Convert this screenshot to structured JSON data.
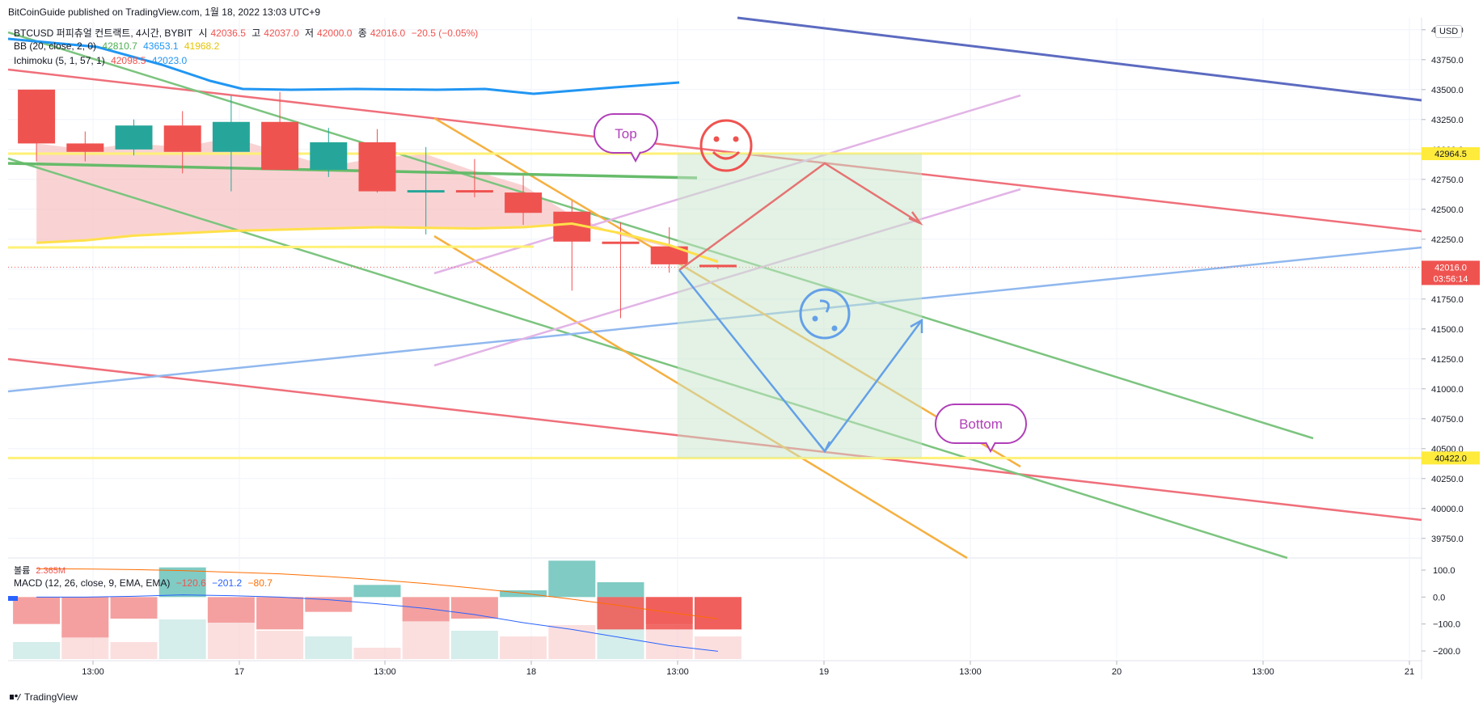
{
  "header": {
    "publisher": "BitCoinGuide published on TradingView.com, 1월 18, 2022 13:03 UTC+9"
  },
  "legend": {
    "symbol": "BTCUSD 퍼피츄얼 컨트랙트, 4시간, BYBIT",
    "o_label": "시",
    "o": "42036.5",
    "h_label": "고",
    "h": "42037.0",
    "l_label": "저",
    "l": "42000.0",
    "c_label": "종",
    "c": "42016.0",
    "chg": "−20.5 (−0.05%)",
    "bb": "BB (20, close, 2, 0)",
    "bb1": "42810.7",
    "bb2": "43653.1",
    "bb3": "41968.2",
    "ichimoku": "Ichimoku (5, 1, 57, 1)",
    "ich1": "42098.5",
    "ich2": "42023.0",
    "vol_label": "볼륨",
    "vol": "2.365M",
    "macd": "MACD (12, 26, close, 9, EMA, EMA)",
    "macd1": "−120.6",
    "macd2": "−201.2",
    "macd3": "−80.7"
  },
  "currency": "USD",
  "footer": {
    "brand": "TradingView"
  },
  "colors": {
    "up": "#26a69a",
    "down": "#ef5350",
    "grid": "#f0f3fa",
    "price_tag_red": "#ef5350",
    "price_tag_yellow": "#ffeb3b"
  },
  "annotations": {
    "top": "Top",
    "bottom": "Bottom",
    "smile": "smile-face-icon",
    "sad": "confused-face-icon"
  },
  "chart_data": {
    "type": "candlestick",
    "price_axis": {
      "ticks": [
        "44000.0",
        "43750.0",
        "43500.0",
        "43250.0",
        "43000.0",
        "42750.0",
        "42500.0",
        "42250.0",
        "42000.0",
        "41750.0",
        "41500.0",
        "41250.0",
        "41000.0",
        "40750.0",
        "40500.0",
        "40250.0",
        "40000.0",
        "39750.0"
      ],
      "range": [
        39600,
        44100
      ]
    },
    "price_tags": [
      {
        "value": "42964.5",
        "style": "yellow"
      },
      {
        "value": "42016.0",
        "style": "red",
        "countdown": "03:56:14"
      },
      {
        "value": "40422.0",
        "style": "yellow"
      }
    ],
    "time_axis": [
      "13:00",
      "17",
      "13:00",
      "18",
      "13:00",
      "19",
      "13:00",
      "20",
      "13:00",
      "21"
    ],
    "candles": [
      {
        "o": 43500,
        "h": 43500,
        "l": 42900,
        "c": 43050
      },
      {
        "o": 43050,
        "h": 43150,
        "l": 42900,
        "c": 42980
      },
      {
        "o": 43000,
        "h": 43250,
        "l": 42950,
        "c": 43200
      },
      {
        "o": 43200,
        "h": 43320,
        "l": 42800,
        "c": 42980
      },
      {
        "o": 42980,
        "h": 43450,
        "l": 42650,
        "c": 43230
      },
      {
        "o": 43230,
        "h": 43480,
        "l": 42830,
        "c": 42830
      },
      {
        "o": 42830,
        "h": 43180,
        "l": 42770,
        "c": 43060
      },
      {
        "o": 43060,
        "h": 43170,
        "l": 42640,
        "c": 42650
      },
      {
        "o": 42640,
        "h": 43020,
        "l": 42290,
        "c": 42660
      },
      {
        "o": 42660,
        "h": 42920,
        "l": 42600,
        "c": 42640
      },
      {
        "o": 42640,
        "h": 42780,
        "l": 42370,
        "c": 42470
      },
      {
        "o": 42480,
        "h": 42570,
        "l": 41820,
        "c": 42230
      },
      {
        "o": 42230,
        "h": 42390,
        "l": 41590,
        "c": 42210
      },
      {
        "o": 42190,
        "h": 42350,
        "l": 41970,
        "c": 42040
      },
      {
        "o": 42036.5,
        "h": 42037,
        "l": 42000,
        "c": 42016
      }
    ],
    "macd_axis": {
      "ticks": [
        "100.0",
        "0.0",
        "−100.0",
        "−200.0"
      ],
      "range": [
        -230,
        130
      ]
    },
    "macd_hist": [
      -100,
      -150,
      -80,
      110,
      -95,
      -120,
      -55,
      45,
      -90,
      -80,
      25,
      135,
      55,
      -100,
      -120
    ],
    "macd_line": [
      0,
      0,
      3,
      8,
      5,
      0,
      -10,
      -25,
      -42,
      -65,
      -95,
      -120,
      -150,
      -180,
      -201.2
    ],
    "signal_line": [
      105,
      104,
      102,
      98,
      92,
      86,
      76,
      64,
      50,
      33,
      14,
      -8,
      -32,
      -57,
      -80.7
    ],
    "volume": [
      0.3,
      0.5,
      0.3,
      0.7,
      1.0,
      0.5,
      0.4,
      0.2,
      0.8,
      0.5,
      0.4,
      0.6,
      1.2,
      0.6,
      0.4
    ]
  }
}
